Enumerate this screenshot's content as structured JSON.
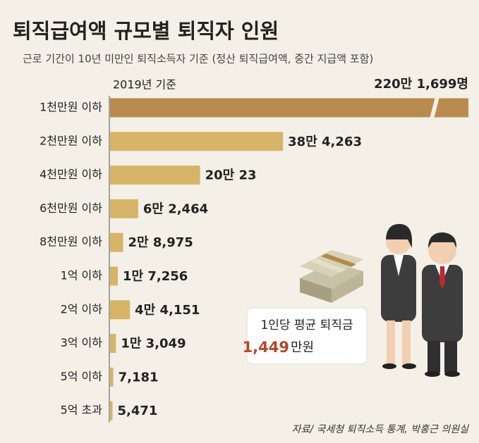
{
  "chart_data": {
    "type": "bar",
    "orientation": "horizontal",
    "title": "퇴직급여액 규모별 퇴직자 인원",
    "subtitle": "근로 기간이 10년 미만인 퇴직소득자 기준 (정산 퇴직급여액, 중간 지급액 포함)",
    "note": "2019년 기준",
    "source": "자료/ 국세청 퇴직소득 통계, 박홍근 의원실",
    "categories": [
      "1천만원 이하",
      "2천만원 이하",
      "4천만원 이하",
      "6천만원 이하",
      "8천만원 이하",
      "1억 이하",
      "2억 이하",
      "3억 이하",
      "5억 이하",
      "5억 초과"
    ],
    "values": [
      2201699,
      384263,
      200023,
      62464,
      28975,
      17256,
      44151,
      13049,
      7181,
      5471
    ],
    "value_labels": [
      "220만 1,699명",
      "38만 4,263",
      "20만 23",
      "6만 2,464",
      "2만 8,975",
      "1만 7,256",
      "4만 4,151",
      "1만 3,049",
      "7,181",
      "5,471"
    ],
    "colors": [
      "#b98b4e",
      "#d6b468",
      "#d6b468",
      "#d6b468",
      "#d6b468",
      "#d6b468",
      "#d6b468",
      "#d6b468",
      "#d6b468",
      "#d6b468"
    ],
    "callout": {
      "label": "1인당 평균 퇴직금",
      "value": 1449,
      "value_label": "1,449",
      "unit": "만원"
    }
  }
}
